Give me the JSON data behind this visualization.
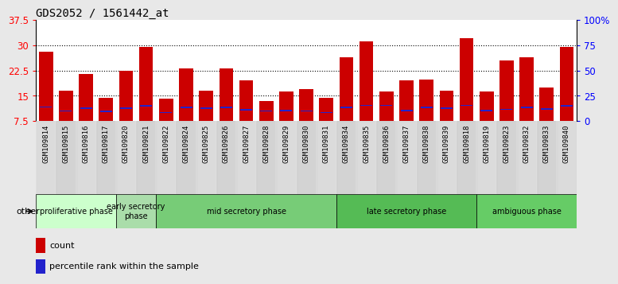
{
  "title": "GDS2052 / 1561442_at",
  "samples": [
    "GSM109814",
    "GSM109815",
    "GSM109816",
    "GSM109817",
    "GSM109820",
    "GSM109821",
    "GSM109822",
    "GSM109824",
    "GSM109825",
    "GSM109826",
    "GSM109827",
    "GSM109828",
    "GSM109829",
    "GSM109830",
    "GSM109831",
    "GSM109834",
    "GSM109835",
    "GSM109836",
    "GSM109837",
    "GSM109838",
    "GSM109839",
    "GSM109818",
    "GSM109819",
    "GSM109823",
    "GSM109832",
    "GSM109833",
    "GSM109840"
  ],
  "count": [
    28.0,
    16.5,
    21.5,
    14.5,
    22.5,
    29.5,
    14.2,
    23.0,
    16.5,
    23.0,
    19.5,
    13.5,
    16.3,
    17.0,
    14.3,
    26.5,
    31.0,
    16.3,
    19.5,
    19.8,
    16.5,
    32.0,
    16.2,
    25.5,
    26.5,
    17.5,
    29.5
  ],
  "percentile_pct": [
    14.0,
    10.0,
    13.0,
    9.5,
    13.0,
    15.0,
    8.5,
    13.5,
    13.0,
    13.5,
    11.0,
    10.0,
    10.5,
    10.0,
    8.5,
    13.5,
    15.5,
    15.5,
    10.5,
    13.5,
    13.0,
    15.5,
    10.5,
    11.5,
    13.5,
    12.0,
    15.0
  ],
  "ylim_left": [
    7.5,
    37.5
  ],
  "yticks_left": [
    7.5,
    15.0,
    22.5,
    30.0,
    37.5
  ],
  "ylim_right": [
    0,
    100
  ],
  "yticks_right": [
    0,
    25,
    50,
    75,
    100
  ],
  "ytick_labels_right": [
    "0",
    "25",
    "50",
    "75",
    "100%"
  ],
  "bar_color_red": "#cc0000",
  "bar_color_blue": "#2222cc",
  "phases": [
    {
      "label": "proliferative phase",
      "start": 0,
      "end": 4,
      "color": "#ccffcc"
    },
    {
      "label": "early secretory\nphase",
      "start": 4,
      "end": 6,
      "color": "#aaddaa"
    },
    {
      "label": "mid secretory phase",
      "start": 6,
      "end": 15,
      "color": "#77cc77"
    },
    {
      "label": "late secretory phase",
      "start": 15,
      "end": 22,
      "color": "#55bb55"
    },
    {
      "label": "ambiguous phase",
      "start": 22,
      "end": 27,
      "color": "#66cc66"
    }
  ],
  "other_label": "other",
  "legend_count": "count",
  "legend_percentile": "percentile rank within the sample",
  "bar_width": 0.7,
  "bg_color": "#e8e8e8",
  "plot_bg": "#ffffff",
  "grid_yticks": [
    15.0,
    22.5,
    30.0
  ],
  "blue_bar_thickness": 0.4
}
